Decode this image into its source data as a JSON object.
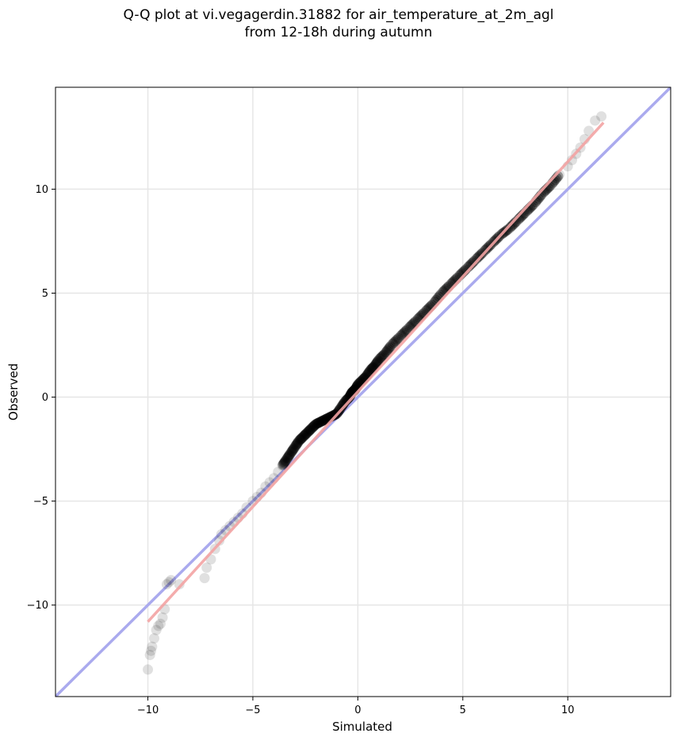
{
  "chart_data": {
    "type": "scatter",
    "title_line1": "Q-Q plot at vi.vegagerdin.31882 for air_temperature_at_2m_agl",
    "title_line2": "from 12-18h during autumn",
    "xlabel": "Simulated",
    "ylabel": "Observed",
    "xlim": [
      -14.4,
      14.9
    ],
    "ylim": [
      -14.4,
      14.9
    ],
    "xticks": [
      -10,
      -5,
      0,
      5,
      10
    ],
    "yticks": [
      -10,
      -5,
      0,
      5,
      10
    ],
    "xtick_labels": [
      "−10",
      "−5",
      "0",
      "5",
      "10"
    ],
    "ytick_labels": [
      "−10",
      "−5",
      "0",
      "5",
      "10"
    ],
    "grid": true,
    "reference_line": {
      "name": "1:1",
      "color": "#aaaaee",
      "points": [
        [
          -14.4,
          -14.4
        ],
        [
          14.9,
          14.9
        ]
      ]
    },
    "fit_line": {
      "color": "#f3a3a3",
      "points": [
        [
          -10.0,
          -10.8
        ],
        [
          11.7,
          13.2
        ]
      ]
    },
    "point_color": "#000000",
    "point_alpha": 0.12,
    "quantiles": {
      "x": [
        -10.0,
        -9.9,
        -9.85,
        -9.8,
        -9.7,
        -9.6,
        -9.5,
        -9.4,
        -9.3,
        -9.2,
        -9.1,
        -9.0,
        -8.9,
        -8.5,
        -7.3,
        -7.2,
        -7.0,
        -6.8,
        -6.6,
        -6.5,
        -6.3,
        -6.1,
        -5.9,
        -5.7,
        -5.5,
        -5.3,
        -5.0,
        -4.8,
        -4.6,
        -4.4,
        -4.2,
        -4.0,
        -3.8,
        -3.6,
        -3.4,
        -3.2,
        -3.0,
        -2.8,
        -2.6,
        -2.4,
        -2.2,
        -2.0,
        -1.8,
        -1.6,
        -1.4,
        -1.2,
        -1.0,
        -0.8,
        -0.6,
        -0.4,
        -0.3,
        -0.2,
        -0.1,
        0.0,
        0.2,
        0.4,
        0.6,
        0.8,
        1.0,
        1.3,
        1.6,
        2.0,
        2.4,
        2.8,
        3.2,
        3.6,
        4.0,
        4.4,
        4.8,
        5.2,
        5.6,
        6.0,
        6.4,
        6.8,
        7.2,
        7.6,
        8.0,
        8.4,
        8.8,
        9.2,
        9.6,
        10.0,
        10.2,
        10.4,
        10.6,
        10.8,
        11.0,
        11.3,
        11.6
      ],
      "y": [
        -13.1,
        -12.4,
        -12.2,
        -12.0,
        -11.6,
        -11.2,
        -11.0,
        -10.9,
        -10.6,
        -10.2,
        -9.0,
        -8.9,
        -8.8,
        -9.0,
        -8.7,
        -8.2,
        -7.8,
        -7.3,
        -6.9,
        -6.6,
        -6.4,
        -6.2,
        -6.0,
        -5.8,
        -5.6,
        -5.3,
        -5.0,
        -4.8,
        -4.6,
        -4.3,
        -4.1,
        -3.9,
        -3.6,
        -3.3,
        -3.0,
        -2.7,
        -2.4,
        -2.1,
        -1.9,
        -1.7,
        -1.5,
        -1.3,
        -1.2,
        -1.1,
        -1.0,
        -0.9,
        -0.8,
        -0.5,
        -0.2,
        0.0,
        0.2,
        0.3,
        0.4,
        0.6,
        0.8,
        1.0,
        1.3,
        1.5,
        1.8,
        2.1,
        2.5,
        2.9,
        3.3,
        3.7,
        4.1,
        4.5,
        5.0,
        5.4,
        5.8,
        6.2,
        6.6,
        7.0,
        7.4,
        7.8,
        8.1,
        8.5,
        8.9,
        9.3,
        9.8,
        10.2,
        10.7,
        11.1,
        11.4,
        11.7,
        12.0,
        12.4,
        12.8,
        13.3,
        13.5
      ]
    }
  }
}
